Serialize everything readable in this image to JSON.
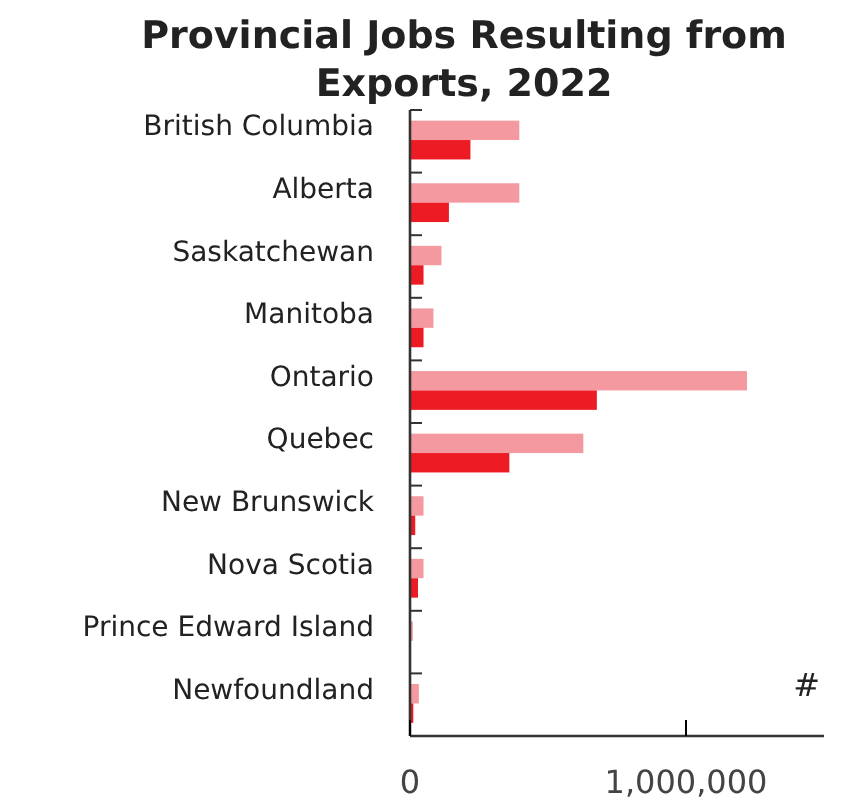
{
  "chart_data": {
    "type": "bar",
    "orientation": "horizontal",
    "title": "Provincial Jobs Resulting from Exports, 2022",
    "categories": [
      "British Columbia",
      "Alberta",
      "Saskatchewan",
      "Manitoba",
      "Ontario",
      "Quebec",
      "New Brunswick",
      "Nova Scotia",
      "Prince Edward Island",
      "Newfoundland"
    ],
    "series": [
      {
        "color": "#f4999f",
        "values": [
          396000,
          396000,
          114000,
          85000,
          1221000,
          628000,
          49000,
          49000,
          10000,
          32000
        ]
      },
      {
        "color": "#ed1c24",
        "values": [
          219000,
          141000,
          49000,
          49000,
          677000,
          360000,
          19000,
          29000,
          null,
          12000
        ]
      }
    ],
    "xlim": [
      0,
      1500000
    ],
    "xticks": [
      0,
      {
        "value": 1000000,
        "label": "1,000,000"
      }
    ],
    "annotations": [
      "#"
    ]
  }
}
